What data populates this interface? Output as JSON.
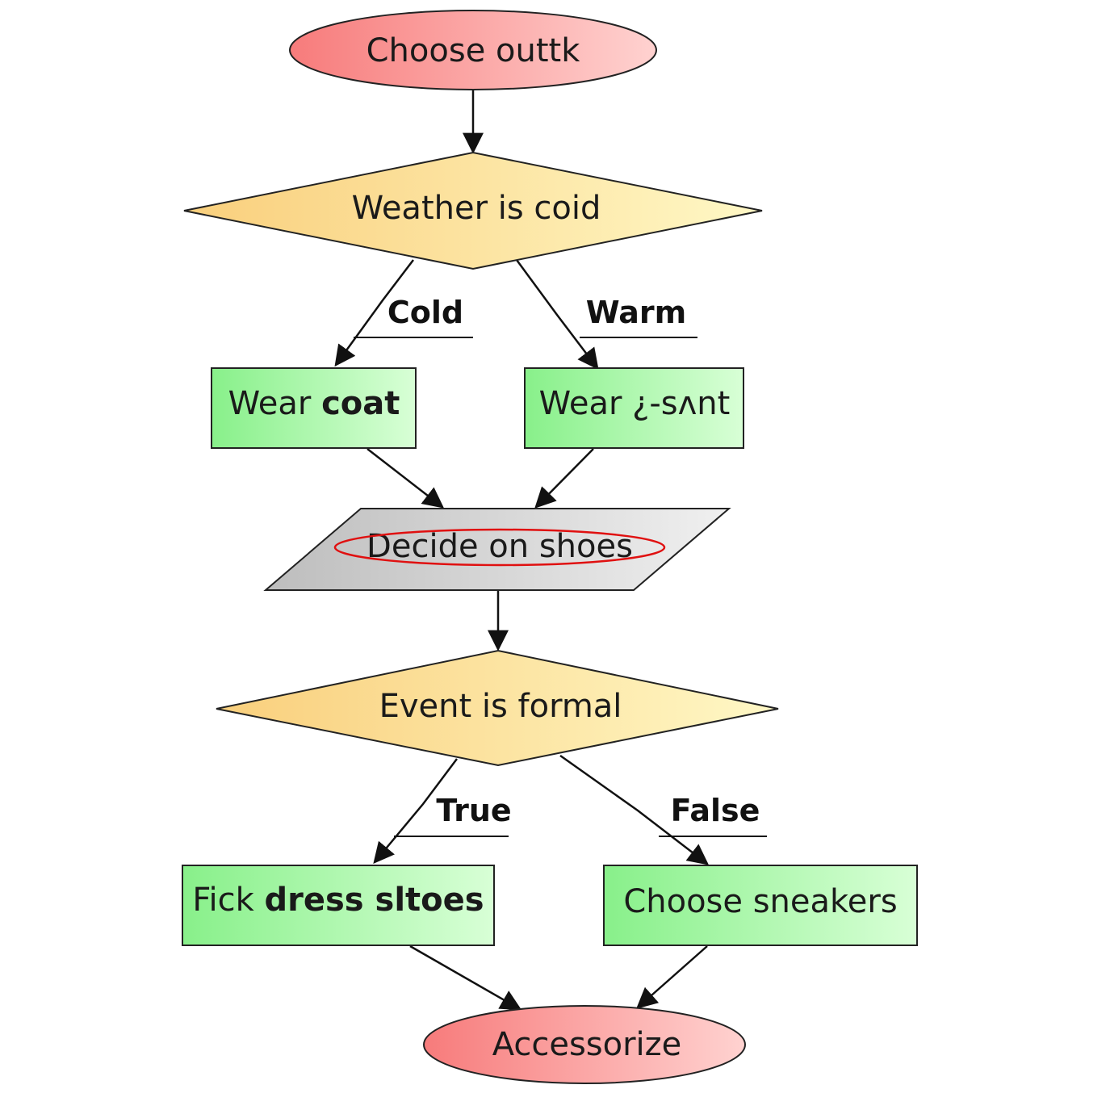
{
  "colors": {
    "terminal_start": "#f77b7b",
    "terminal_end": "#ffd2d0",
    "decision_start": "#f9cf7c",
    "decision_end": "#fff8c6",
    "process_start": "#88f08a",
    "process_end": "#d8ffd6",
    "io_start": "#bdbdbd",
    "io_end": "#f0f0f0",
    "highlight_ring": "#e01010",
    "edge": "#111111"
  },
  "nodes": {
    "start": {
      "text": "Choose outtk"
    },
    "weather_decision": {
      "text": "Weather is coid"
    },
    "wear_coat": {
      "prefix": "Wear ",
      "bold": "coat"
    },
    "wear_tshirt": {
      "text": "Wear ¿-sʌnt"
    },
    "decide_shoes": {
      "text": "Decide on shoes"
    },
    "event_decision": {
      "text": "Event is formal"
    },
    "pick_dress": {
      "prefix": "Fick ",
      "bold": "dress sltoes"
    },
    "choose_sneakers": {
      "text": "Choose sneakers"
    },
    "end": {
      "text": "Accessorize"
    }
  },
  "edges": {
    "cold": "Cold",
    "warm": "Warm",
    "true": "True",
    "false": "False"
  }
}
